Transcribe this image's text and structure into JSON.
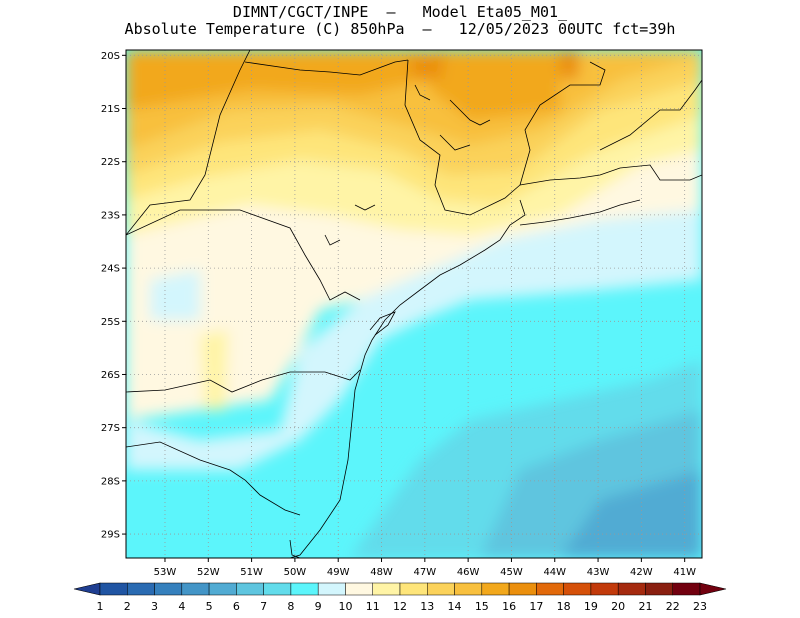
{
  "title": {
    "line1": "DIMNT/CGCT/INPE  –   Model Eta05_M01_",
    "line2": "Absolute Temperature (C) 850hPa  –   12/05/2023 00UTC fct=39h"
  },
  "map": {
    "lat_labels": [
      "20S",
      "21S",
      "22S",
      "23S",
      "24S",
      "25S",
      "26S",
      "27S",
      "28S",
      "29S"
    ],
    "lon_labels": [
      "53W",
      "52W",
      "51W",
      "50W",
      "49W",
      "48W",
      "47W",
      "46W",
      "45W",
      "44W",
      "43W",
      "42W",
      "41W"
    ],
    "lat_range": [
      -29.45,
      -19.9
    ],
    "lon_range": [
      -53.9,
      -40.6
    ]
  },
  "colorbar": {
    "labels": [
      "1",
      "2",
      "3",
      "4",
      "5",
      "6",
      "7",
      "8",
      "9",
      "10",
      "11",
      "12",
      "13",
      "14",
      "15",
      "16",
      "17",
      "18",
      "19",
      "20",
      "21",
      "22",
      "23"
    ],
    "colors": [
      "#1f3e91",
      "#2055a3",
      "#2a6bb2",
      "#3580bd",
      "#4395c7",
      "#51abd3",
      "#5ec5df",
      "#62dceb",
      "#5cf5fb",
      "#d3f6fd",
      "#fff8e1",
      "#fff4a6",
      "#fee57a",
      "#fbd25a",
      "#f8c03e",
      "#f2a81c",
      "#eb8f0d",
      "#e2690a",
      "#d55009",
      "#c23a0b",
      "#a52a0f",
      "#8a1f10",
      "#72000f"
    ]
  }
}
